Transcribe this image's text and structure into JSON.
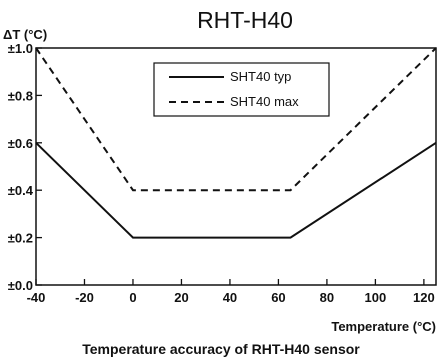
{
  "chart_data": {
    "type": "line",
    "title": "RHT-H40",
    "ylabel": "ΔT (°C)",
    "xlabel": "Temperature (°C)",
    "caption": "Temperature accuracy of RHT-H40 sensor",
    "xlim": [
      -40,
      125
    ],
    "ylim": [
      0,
      1.0
    ],
    "x_ticks": [
      -40,
      -20,
      0,
      20,
      40,
      60,
      80,
      100,
      120
    ],
    "y_ticks": [
      {
        "value": 0.0,
        "label": "±0.0"
      },
      {
        "value": 0.2,
        "label": "±0.2"
      },
      {
        "value": 0.4,
        "label": "±0.4"
      },
      {
        "value": 0.6,
        "label": "±0.6"
      },
      {
        "value": 0.8,
        "label": "±0.8"
      },
      {
        "value": 1.0,
        "label": "±1.0"
      }
    ],
    "grid": false,
    "legend_position": "top-center",
    "series": [
      {
        "name": "SHT40 typ",
        "style": "solid",
        "color": "#111111",
        "points": [
          [
            -40,
            0.6
          ],
          [
            0,
            0.2
          ],
          [
            65,
            0.2
          ],
          [
            125,
            0.6
          ]
        ]
      },
      {
        "name": "SHT40 max",
        "style": "dashed",
        "color": "#111111",
        "points": [
          [
            -40,
            1.0
          ],
          [
            0,
            0.4
          ],
          [
            65,
            0.4
          ],
          [
            125,
            1.0
          ]
        ]
      }
    ]
  }
}
